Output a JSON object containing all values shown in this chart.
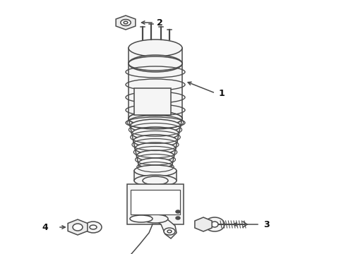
{
  "bg_color": "#ffffff",
  "line_color": "#4a4a4a",
  "lw": 1.1,
  "fig_width": 4.9,
  "fig_height": 3.6,
  "dpi": 100
}
